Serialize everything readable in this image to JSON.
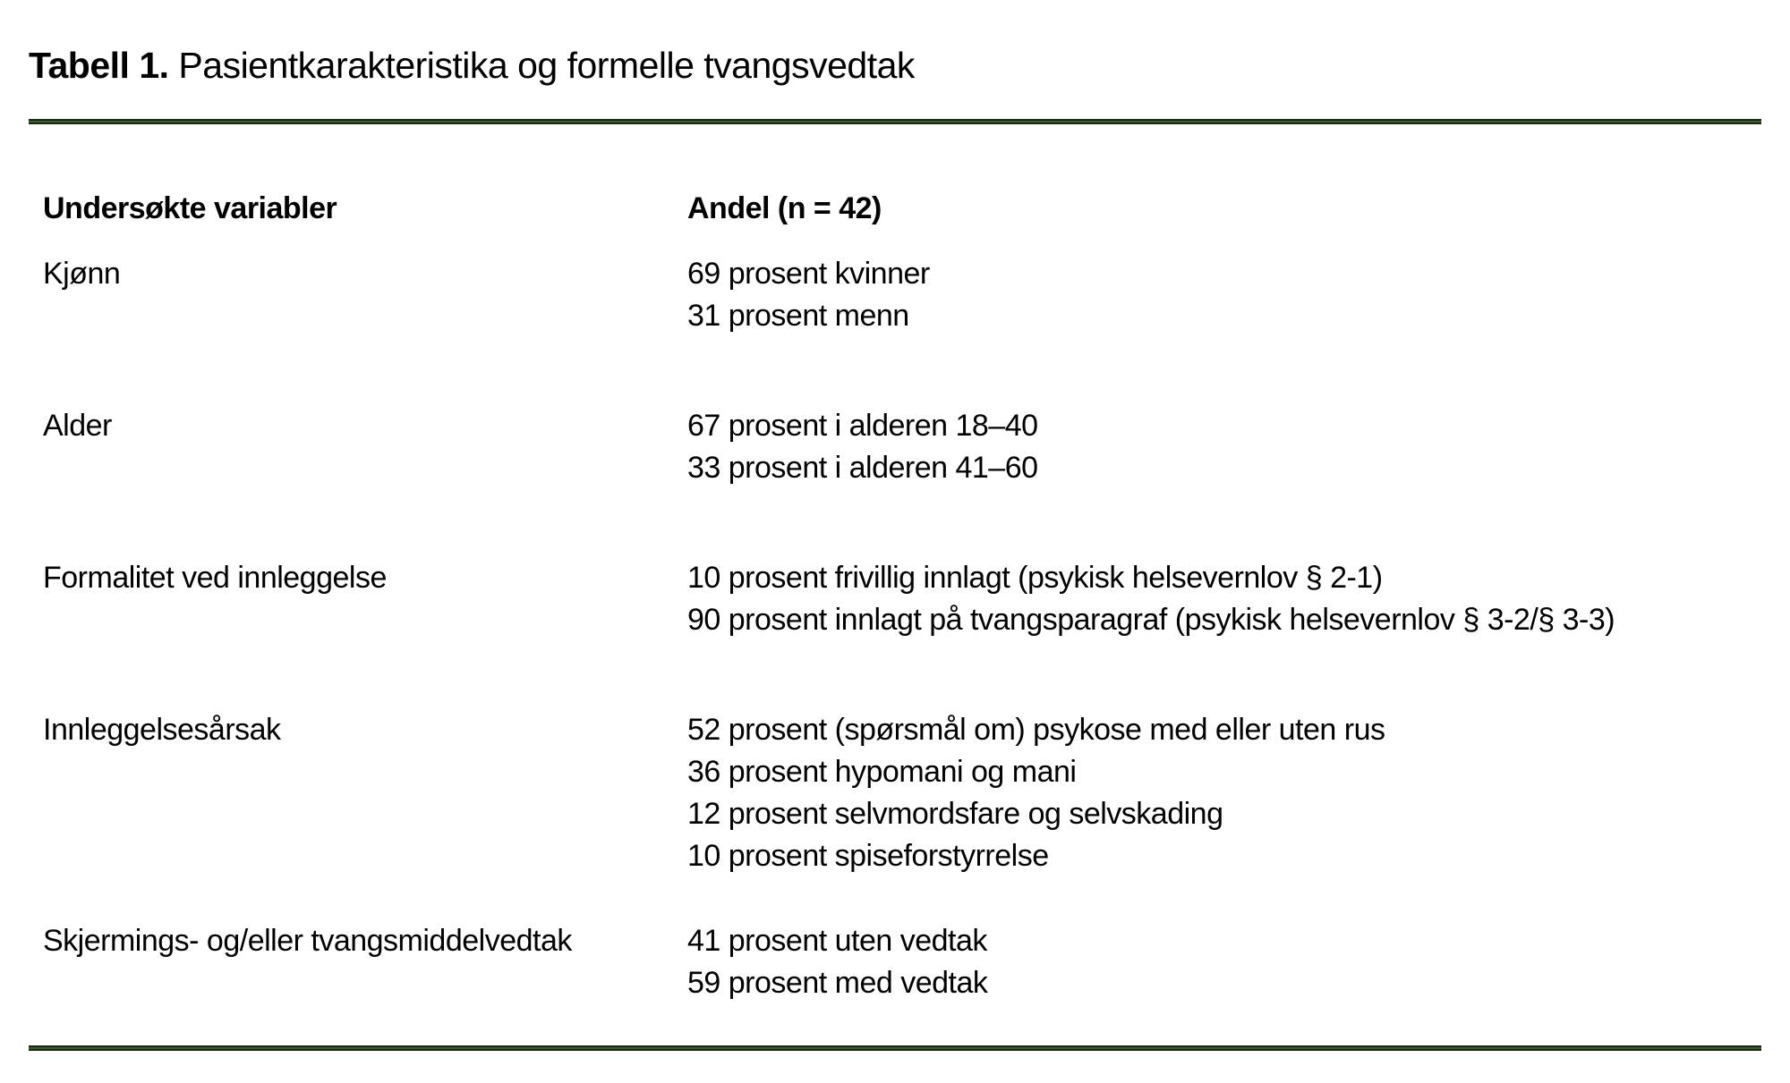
{
  "title": {
    "label": "Tabell 1.",
    "text": " Pasientkarakteristika og formelle tvangsvedtak"
  },
  "colors": {
    "rule_edge_green": "#152a0f",
    "rule_core_green": "#3c5c35",
    "text": "#000000",
    "background": "#ffffff"
  },
  "table": {
    "headers": [
      "Undersøkte variabler",
      "Andel (n = 42)"
    ],
    "rows": [
      {
        "variable": "Kjønn",
        "values": [
          "69 prosent kvinner",
          "31 prosent menn"
        ]
      },
      {
        "variable": "Alder",
        "values": [
          "67 prosent i alderen 18–40",
          "33 prosent i alderen 41–60"
        ]
      },
      {
        "variable": "Formalitet ved innleggelse",
        "values": [
          "10 prosent frivillig innlagt (psykisk helsevernlov § 2-1)",
          "90 prosent innlagt på tvangsparagraf (psykisk helsevernlov § 3-2/§ 3-3)"
        ]
      },
      {
        "variable": "Innleggelsesårsak",
        "values": [
          "52 prosent (spørsmål om) psykose med eller uten rus",
          "36 prosent hypomani og mani",
          "12 prosent selvmordsfare og selvskading",
          "10 prosent spiseforstyrrelse"
        ]
      },
      {
        "variable": "Skjermings- og/eller tvangsmiddelvedtak",
        "values": [
          "41 prosent uten vedtak",
          "59 prosent med vedtak"
        ]
      }
    ]
  }
}
